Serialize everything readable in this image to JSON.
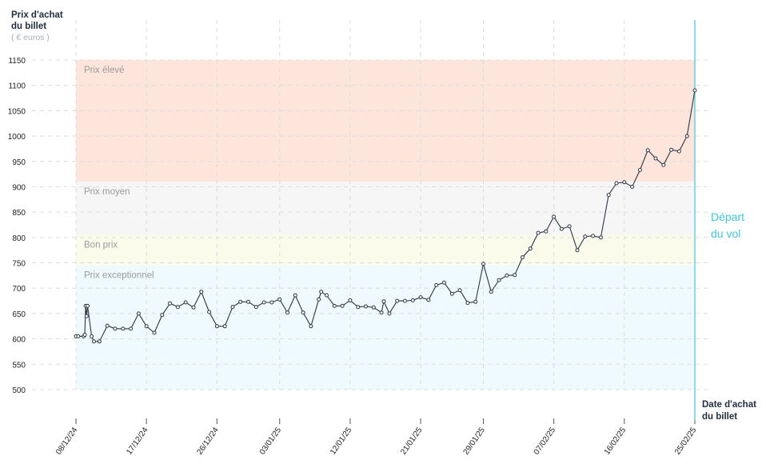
{
  "chart_data": {
    "type": "line",
    "ylabel_line1": "Prix d'achat",
    "ylabel_line2": "du billet",
    "yunit": "( € euros )",
    "xlabel_line1": "Date d'achat",
    "xlabel_line2": "du billet",
    "departure_line1": "Départ",
    "departure_line2": "du vol",
    "y_ticks": [
      "1150",
      "1100",
      "1050",
      "1000",
      "950",
      "900",
      "850",
      "800",
      "750",
      "700",
      "650",
      "600",
      "550",
      "500"
    ],
    "x_ticks": [
      "08/12/24",
      "17/12/24",
      "26/12/24",
      "03/01/25",
      "12/01/25",
      "21/01/25",
      "29/01/25",
      "07/02/25",
      "16/02/25",
      "25/02/25"
    ],
    "zones": [
      {
        "label": "Prix élevé",
        "from": 910,
        "to": 1150,
        "color": "#fde5dc"
      },
      {
        "label": "Prix moyen",
        "from": 805,
        "to": 910,
        "color": "#f6f6f6"
      },
      {
        "label": "Bon prix",
        "from": 745,
        "to": 805,
        "color": "#fbfbec"
      },
      {
        "label": "Prix exceptionnel",
        "from": 500,
        "to": 745,
        "color": "#eefafd"
      }
    ],
    "x_range": [
      "08/12/24",
      "25/02/25"
    ],
    "series": [
      {
        "color": "#2b3545",
        "points": [
          [
            "08/12/24",
            605
          ],
          [
            "08/12/24",
            605
          ],
          [
            "09/12/24",
            605
          ],
          [
            "09/12/24",
            608
          ],
          [
            "09/12/24",
            665
          ],
          [
            "09/12/24",
            645
          ],
          [
            "09/12/24",
            665
          ],
          [
            "10/12/24",
            605
          ],
          [
            "10/12/24",
            595
          ],
          [
            "11/12/24",
            595
          ],
          [
            "12/12/24",
            626
          ],
          [
            "13/12/24",
            620
          ],
          [
            "14/12/24",
            620
          ],
          [
            "15/12/24",
            620
          ],
          [
            "16/12/24",
            650
          ],
          [
            "17/12/24",
            625
          ],
          [
            "18/12/24",
            612
          ],
          [
            "19/12/24",
            647
          ],
          [
            "20/12/24",
            670
          ],
          [
            "21/12/24",
            663
          ],
          [
            "22/12/24",
            672
          ],
          [
            "23/12/24",
            662
          ],
          [
            "24/12/24",
            693
          ],
          [
            "25/12/24",
            653
          ],
          [
            "26/12/24",
            625
          ],
          [
            "27/12/24",
            625
          ],
          [
            "28/12/24",
            663
          ],
          [
            "29/12/24",
            673
          ],
          [
            "30/12/24",
            673
          ],
          [
            "31/12/24",
            663
          ],
          [
            "01/01/25",
            672
          ],
          [
            "02/01/25",
            672
          ],
          [
            "03/01/25",
            678
          ],
          [
            "04/01/25",
            652
          ],
          [
            "05/01/25",
            686
          ],
          [
            "06/01/25",
            652
          ],
          [
            "07/01/25",
            625
          ],
          [
            "08/01/25",
            678
          ],
          [
            "08/01/25",
            693
          ],
          [
            "09/01/25",
            686
          ],
          [
            "10/01/25",
            665
          ],
          [
            "11/01/25",
            665
          ],
          [
            "12/01/25",
            676
          ],
          [
            "13/01/25",
            663
          ],
          [
            "14/01/25",
            664
          ],
          [
            "15/01/25",
            662
          ],
          [
            "16/01/25",
            652
          ],
          [
            "16/01/25",
            674
          ],
          [
            "17/01/25",
            650
          ],
          [
            "18/01/25",
            675
          ],
          [
            "19/01/25",
            675
          ],
          [
            "20/01/25",
            676
          ],
          [
            "21/01/25",
            682
          ],
          [
            "22/01/25",
            677
          ],
          [
            "23/01/25",
            706
          ],
          [
            "24/01/25",
            711
          ],
          [
            "25/01/25",
            689
          ],
          [
            "26/01/25",
            696
          ],
          [
            "27/01/25",
            671
          ],
          [
            "28/01/25",
            673
          ],
          [
            "29/01/25",
            748
          ],
          [
            "30/01/25",
            693
          ],
          [
            "31/01/25",
            716
          ],
          [
            "01/02/25",
            725
          ],
          [
            "02/02/25",
            726
          ],
          [
            "03/02/25",
            761
          ],
          [
            "04/02/25",
            778
          ],
          [
            "05/02/25",
            809
          ],
          [
            "06/02/25",
            812
          ],
          [
            "07/02/25",
            841
          ],
          [
            "08/02/25",
            817
          ],
          [
            "09/02/25",
            822
          ],
          [
            "10/02/25",
            775
          ],
          [
            "11/02/25",
            802
          ],
          [
            "12/02/25",
            803
          ],
          [
            "13/02/25",
            800
          ],
          [
            "14/02/25",
            884
          ],
          [
            "15/02/25",
            907
          ],
          [
            "16/02/25",
            909
          ],
          [
            "17/02/25",
            900
          ],
          [
            "18/02/25",
            933
          ],
          [
            "19/02/25",
            972
          ],
          [
            "20/02/25",
            956
          ],
          [
            "21/02/25",
            943
          ],
          [
            "22/02/25",
            973
          ],
          [
            "23/02/25",
            970
          ],
          [
            "24/02/25",
            1000
          ],
          [
            "25/02/25",
            1090
          ]
        ]
      }
    ]
  }
}
